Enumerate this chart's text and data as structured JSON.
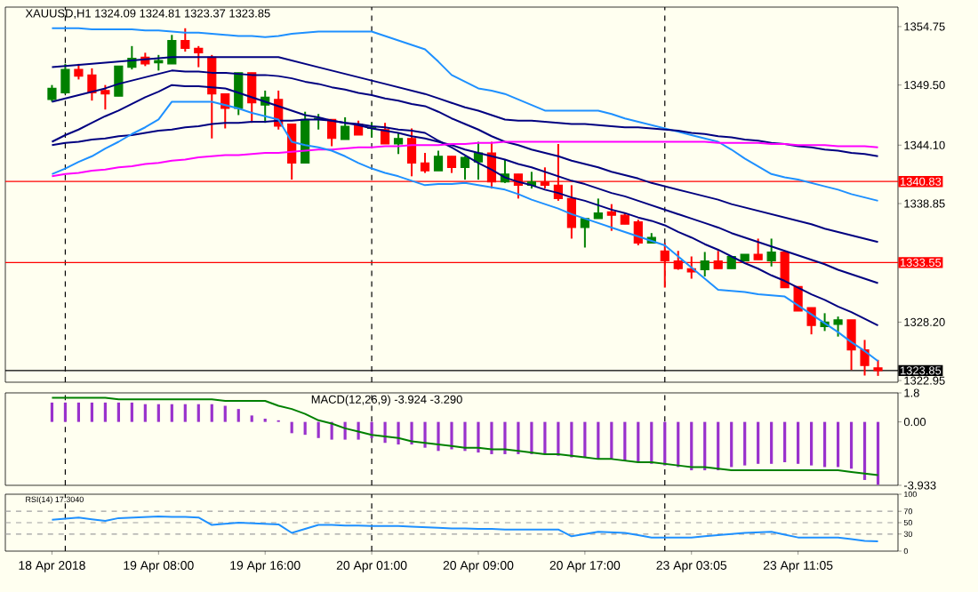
{
  "chart_data": [
    {
      "type": "candlestick",
      "title": "XAUUSD,H1  1324.09 1324.81 1323.37 1323.85",
      "categories": [
        null,
        null,
        null,
        null,
        null,
        null,
        null,
        null,
        null,
        null,
        null,
        null,
        null,
        null,
        null,
        null,
        null,
        null,
        null,
        null,
        null,
        null,
        null,
        null,
        null,
        null,
        null,
        null,
        null,
        null,
        null,
        null,
        null,
        null,
        null,
        null,
        null,
        null,
        null,
        null,
        null,
        null,
        null,
        null,
        null,
        null,
        null,
        null,
        null,
        null,
        null,
        null,
        null,
        null,
        null,
        null,
        null,
        null,
        null,
        null,
        null,
        null,
        null
      ],
      "ohlc": [
        [
          1348.2,
          1349.5,
          1348.0,
          1349.2
        ],
        [
          1348.8,
          1351.4,
          1348.7,
          1350.9
        ],
        [
          1350.9,
          1351.4,
          1350.0,
          1350.3
        ],
        [
          1350.4,
          1351.0,
          1348.1,
          1348.8
        ],
        [
          1349.0,
          1349.5,
          1347.3,
          1348.7
        ],
        [
          1348.5,
          1351.2,
          1348.5,
          1351.2
        ],
        [
          1351.1,
          1353.0,
          1350.9,
          1351.9
        ],
        [
          1352.0,
          1352.4,
          1351.2,
          1351.4
        ],
        [
          1351.5,
          1352.2,
          1350.8,
          1351.7
        ],
        [
          1351.4,
          1354.0,
          1351.4,
          1353.5
        ],
        [
          1353.5,
          1354.6,
          1352.5,
          1352.8
        ],
        [
          1352.8,
          1353.0,
          1351.1,
          1352.4
        ],
        [
          1352.0,
          1352.2,
          1344.7,
          1348.7
        ],
        [
          1348.7,
          1348.7,
          1345.6,
          1347.4
        ],
        [
          1347.4,
          1350.6,
          1346.8,
          1350.6
        ],
        [
          1350.6,
          1350.6,
          1346.1,
          1347.9
        ],
        [
          1347.7,
          1349.0,
          1346.1,
          1348.4
        ],
        [
          1348.2,
          1349.0,
          1345.5,
          1345.8
        ],
        [
          1346.0,
          1346.0,
          1341.0,
          1342.5
        ],
        [
          1342.5,
          1347.1,
          1342.5,
          1346.4
        ],
        [
          1346.4,
          1346.9,
          1345.5,
          1346.5
        ],
        [
          1346.4,
          1346.4,
          1344.0,
          1344.7
        ],
        [
          1344.6,
          1346.6,
          1344.6,
          1345.8
        ],
        [
          1346.0,
          1346.3,
          1345.0,
          1345.0
        ],
        [
          1345.6,
          1346.1,
          1344.8,
          1345.7
        ],
        [
          1345.5,
          1346.1,
          1344.2,
          1344.2
        ],
        [
          1344.2,
          1345.2,
          1343.3,
          1344.7
        ],
        [
          1344.7,
          1345.6,
          1341.3,
          1342.5
        ],
        [
          1342.5,
          1343.4,
          1341.6,
          1341.8
        ],
        [
          1341.8,
          1343.6,
          1341.8,
          1343.1
        ],
        [
          1343.1,
          1343.1,
          1341.6,
          1342.1
        ],
        [
          1342.1,
          1343.1,
          1341.0,
          1343.0
        ],
        [
          1342.6,
          1344.4,
          1341.0,
          1343.4
        ],
        [
          1343.4,
          1344.4,
          1340.2,
          1340.8
        ],
        [
          1340.8,
          1342.8,
          1340.7,
          1341.5
        ],
        [
          1341.5,
          1341.5,
          1339.3,
          1340.5
        ],
        [
          1340.5,
          1341.7,
          1340.2,
          1340.8
        ],
        [
          1340.8,
          1342.1,
          1340.2,
          1340.5
        ],
        [
          1340.5,
          1344.2,
          1339.1,
          1339.3
        ],
        [
          1339.3,
          1340.5,
          1335.7,
          1336.7
        ],
        [
          1336.7,
          1337.5,
          1334.9,
          1337.5
        ],
        [
          1337.5,
          1339.3,
          1337.5,
          1338.0
        ],
        [
          1338.1,
          1338.8,
          1336.4,
          1337.8
        ],
        [
          1337.8,
          1338.0,
          1337.0,
          1337.0
        ],
        [
          1337.2,
          1337.4,
          1335.1,
          1335.3
        ],
        [
          1335.3,
          1336.2,
          1335.3,
          1335.8
        ],
        [
          1334.6,
          1335.3,
          1331.3,
          1333.7
        ],
        [
          1333.7,
          1334.6,
          1332.9,
          1333.0
        ],
        [
          1333.0,
          1334.1,
          1332.1,
          1332.7
        ],
        [
          1332.9,
          1334.5,
          1332.3,
          1333.7
        ],
        [
          1333.7,
          1334.6,
          1333.0,
          1333.0
        ],
        [
          1333.0,
          1334.1,
          1333.0,
          1334.1
        ],
        [
          1333.7,
          1334.3,
          1333.7,
          1334.3
        ],
        [
          1334.3,
          1335.7,
          1333.8,
          1333.8
        ],
        [
          1333.7,
          1335.7,
          1333.2,
          1334.5
        ],
        [
          1334.5,
          1334.5,
          1331.3,
          1331.3
        ],
        [
          1331.4,
          1331.4,
          1329.2,
          1329.2
        ],
        [
          1329.5,
          1329.5,
          1327.1,
          1327.9
        ],
        [
          1327.8,
          1329.0,
          1327.4,
          1328.2
        ],
        [
          1328.0,
          1328.7,
          1326.9,
          1328.4
        ],
        [
          1328.4,
          1328.4,
          1323.9,
          1325.7
        ],
        [
          1325.7,
          1326.6,
          1323.4,
          1324.3
        ],
        [
          1324.09,
          1324.81,
          1323.37,
          1323.85
        ]
      ],
      "series": [
        {
          "type": "line",
          "color": "#1e90ff",
          "values": [
            1354.6,
            1354.6,
            1354.6,
            1354.5,
            1354.5,
            1354.5,
            1354.5,
            1354.4,
            1354.4,
            1354.3,
            1354.2,
            1354.2,
            1354.1,
            1354.0,
            1353.9,
            1353.9,
            1353.8,
            1353.9,
            1354.1,
            1354.2,
            1354.3,
            1354.3,
            1354.3,
            1354.3,
            1354.3,
            1353.9,
            1353.5,
            1353.1,
            1352.7,
            1351.6,
            1350.4,
            1349.8,
            1349.2,
            1349.0,
            1348.7,
            1348.2,
            1347.7,
            1347.2,
            1347.2,
            1347.2,
            1347.2,
            1347.2,
            1346.9,
            1346.5,
            1346.2,
            1345.9,
            1345.6,
            1345.3,
            1345.0,
            1344.7,
            1344.4,
            1343.7,
            1342.9,
            1342.2,
            1341.5,
            1341.2,
            1341.0,
            1340.7,
            1340.4,
            1340.1,
            1339.7,
            1339.4,
            1339.1
          ]
        },
        {
          "type": "line",
          "color": "#000080",
          "values": [
            1351.1,
            1351.2,
            1351.3,
            1351.4,
            1351.5,
            1351.6,
            1351.7,
            1351.8,
            1351.9,
            1352.0,
            1352.0,
            1352.0,
            1352.0,
            1352.0,
            1352.0,
            1352.0,
            1352.0,
            1352.0,
            1351.7,
            1351.4,
            1351.1,
            1350.8,
            1350.5,
            1350.2,
            1349.9,
            1349.6,
            1349.3,
            1349.0,
            1348.7,
            1348.3,
            1347.9,
            1347.5,
            1347.2,
            1346.8,
            1346.4,
            1346.3,
            1346.3,
            1346.2,
            1346.1,
            1346.0,
            1346.0,
            1345.9,
            1345.8,
            1345.7,
            1345.7,
            1345.6,
            1345.5,
            1345.4,
            1345.2,
            1345.1,
            1344.9,
            1344.8,
            1344.6,
            1344.5,
            1344.3,
            1344.2,
            1344.0,
            1343.9,
            1343.7,
            1343.6,
            1343.4,
            1343.3,
            1343.1
          ]
        },
        {
          "type": "line",
          "color": "#000080",
          "values": [
            1348.0,
            1348.3,
            1348.6,
            1348.9,
            1349.2,
            1349.6,
            1349.9,
            1350.2,
            1350.5,
            1350.8,
            1350.7,
            1350.7,
            1350.6,
            1350.6,
            1350.5,
            1350.4,
            1350.4,
            1350.3,
            1350.1,
            1349.8,
            1349.6,
            1349.3,
            1349.1,
            1348.8,
            1348.6,
            1348.3,
            1348.1,
            1347.8,
            1347.6,
            1347.1,
            1346.5,
            1346.0,
            1345.5,
            1344.9,
            1344.4,
            1344.1,
            1343.7,
            1343.4,
            1343.1,
            1342.7,
            1342.4,
            1342.1,
            1341.7,
            1341.4,
            1341.1,
            1340.7,
            1340.4,
            1340.1,
            1339.8,
            1339.5,
            1339.2,
            1338.8,
            1338.5,
            1338.2,
            1337.9,
            1337.6,
            1337.3,
            1337.0,
            1336.6,
            1336.3,
            1336.0,
            1335.7,
            1335.4
          ]
        },
        {
          "type": "line",
          "color": "#000080",
          "values": [
            1344.4,
            1345.0,
            1345.5,
            1346.1,
            1346.7,
            1347.2,
            1347.8,
            1348.4,
            1348.9,
            1349.5,
            1349.4,
            1349.4,
            1349.3,
            1349.2,
            1348.8,
            1348.4,
            1348.0,
            1347.6,
            1347.2,
            1346.8,
            1346.6,
            1346.3,
            1346.1,
            1345.9,
            1345.6,
            1345.4,
            1345.2,
            1344.9,
            1344.7,
            1344.4,
            1344.1,
            1343.7,
            1343.4,
            1343.1,
            1342.8,
            1342.4,
            1342.1,
            1341.7,
            1341.3,
            1340.9,
            1340.6,
            1340.2,
            1339.8,
            1339.5,
            1339.1,
            1338.7,
            1338.3,
            1337.9,
            1337.5,
            1337.1,
            1336.7,
            1336.2,
            1335.8,
            1335.4,
            1335.0,
            1334.6,
            1334.2,
            1333.8,
            1333.4,
            1332.9,
            1332.5,
            1332.1,
            1331.7
          ]
        },
        {
          "type": "line",
          "color": "#000080",
          "values": [
            1344.1,
            1344.3,
            1344.4,
            1344.6,
            1344.7,
            1344.9,
            1345.0,
            1345.2,
            1345.4,
            1345.5,
            1345.7,
            1345.8,
            1346.0,
            1346.1,
            1346.1,
            1346.2,
            1346.2,
            1346.3,
            1346.3,
            1346.4,
            1346.4,
            1346.3,
            1346.1,
            1346.0,
            1345.8,
            1345.7,
            1345.5,
            1345.4,
            1345.2,
            1344.5,
            1343.9,
            1343.2,
            1342.5,
            1341.9,
            1341.2,
            1340.8,
            1340.5,
            1340.1,
            1339.8,
            1339.4,
            1339.1,
            1338.7,
            1338.3,
            1338.0,
            1337.6,
            1337.3,
            1336.9,
            1336.3,
            1335.8,
            1335.2,
            1334.7,
            1334.1,
            1333.5,
            1333.0,
            1332.4,
            1331.9,
            1331.3,
            1330.7,
            1330.2,
            1329.6,
            1329.1,
            1328.5,
            1327.9
          ]
        },
        {
          "type": "line",
          "color": "#ff00ff",
          "values": [
            1341.3,
            1341.5,
            1341.6,
            1341.8,
            1341.9,
            1342.1,
            1342.2,
            1342.4,
            1342.5,
            1342.7,
            1342.8,
            1343.0,
            1343.1,
            1343.2,
            1343.2,
            1343.3,
            1343.4,
            1343.4,
            1343.5,
            1343.6,
            1343.7,
            1343.7,
            1343.8,
            1343.9,
            1343.9,
            1344.0,
            1344.0,
            1344.1,
            1344.1,
            1344.1,
            1344.2,
            1344.2,
            1344.3,
            1344.3,
            1344.4,
            1344.4,
            1344.4,
            1344.4,
            1344.4,
            1344.4,
            1344.4,
            1344.4,
            1344.4,
            1344.4,
            1344.4,
            1344.4,
            1344.4,
            1344.4,
            1344.4,
            1344.4,
            1344.3,
            1344.3,
            1344.3,
            1344.3,
            1344.2,
            1344.2,
            1344.1,
            1344.1,
            1344.1,
            1344.0,
            1344.0,
            1344.0,
            1343.9
          ]
        },
        {
          "type": "line",
          "color": "#1e90ff",
          "values": [
            1341.5,
            1342.0,
            1342.6,
            1343.1,
            1343.8,
            1344.4,
            1345.1,
            1345.7,
            1346.4,
            1348.0,
            1348.0,
            1348.0,
            1348.0,
            1347.7,
            1347.4,
            1347.0,
            1346.7,
            1346.4,
            1344.4,
            1344.1,
            1343.9,
            1343.6,
            1343.1,
            1342.5,
            1342.0,
            1341.6,
            1341.3,
            1340.9,
            1340.5,
            1340.6,
            1340.6,
            1340.7,
            1340.5,
            1340.3,
            1340.1,
            1339.7,
            1339.2,
            1338.8,
            1338.4,
            1337.9,
            1337.5,
            1337.1,
            1336.7,
            1336.3,
            1335.9,
            1335.5,
            1335.1,
            1334.1,
            1333.1,
            1332.1,
            1331.1,
            1331.0,
            1330.9,
            1330.7,
            1330.6,
            1330.5,
            1329.7,
            1328.9,
            1328.1,
            1327.3,
            1326.4,
            1325.6,
            1324.7
          ]
        }
      ],
      "ylim": [
        1322.8,
        1356.5
      ],
      "yticks": [
        1354.75,
        {
          "value": 1349.5,
          "label": "1349.50"
        },
        {
          "value": 1344.1,
          "label": "1344.10"
        },
        1338.85,
        {
          "value": 1328.2,
          "label": "1328.20"
        },
        1322.95
      ],
      "ref_lines": [
        {
          "axis": "y",
          "value": 1340.83,
          "label": "1340.83",
          "color": "#ff0000"
        },
        {
          "axis": "y",
          "value": 1333.55,
          "label": "1333.55",
          "color": "#ff0000"
        },
        {
          "axis": "y",
          "value": 1323.85,
          "label": "1323.85",
          "color": "#000000"
        }
      ],
      "grid": "x",
      "tick_labels": "y"
    },
    {
      "type": "bar",
      "title": "MACD(12,26,9) -3.924 -3.290",
      "categories": [
        null,
        null,
        null,
        null,
        null,
        null,
        null,
        null,
        null,
        null,
        null,
        null,
        null,
        null,
        null,
        null,
        null,
        null,
        null,
        null,
        null,
        null,
        null,
        null,
        null,
        null,
        null,
        null,
        null,
        null,
        null,
        null,
        null,
        null,
        null,
        null,
        null,
        null,
        null,
        null,
        null,
        null,
        null,
        null,
        null,
        null,
        null,
        null,
        null,
        null,
        null,
        null,
        null,
        null,
        null,
        null,
        null,
        null,
        null,
        null,
        null,
        null,
        null
      ],
      "series": [
        {
          "type": "bar",
          "color": "#9932cc",
          "values": [
            1.2,
            1.2,
            1.2,
            1.2,
            1.2,
            1.2,
            1.2,
            1.1,
            1.1,
            1.1,
            1.1,
            1.1,
            1.1,
            1.0,
            0.8,
            0.4,
            0.2,
            0.1,
            -0.7,
            -0.8,
            -1.0,
            -1.1,
            -1.1,
            -1.1,
            -1.0,
            -1.3,
            -1.4,
            -1.4,
            -1.6,
            -1.8,
            -1.7,
            -1.8,
            -1.9,
            -2.0,
            -2.0,
            -2.0,
            -2.0,
            -2.0,
            -2.1,
            -2.2,
            -2.2,
            -2.3,
            -2.3,
            -2.4,
            -2.5,
            -2.6,
            -2.7,
            -2.8,
            -3.0,
            -3.0,
            -3.0,
            -2.8,
            -2.7,
            -2.6,
            -2.6,
            -2.5,
            -2.6,
            -2.7,
            -2.8,
            -2.8,
            -2.9,
            -3.6,
            -3.9
          ]
        },
        {
          "type": "line",
          "color": "#008000",
          "values": [
            1.5,
            1.5,
            1.5,
            1.5,
            1.5,
            1.4,
            1.4,
            1.4,
            1.4,
            1.4,
            1.4,
            1.4,
            1.4,
            1.3,
            1.3,
            1.3,
            1.3,
            1.0,
            0.8,
            0.5,
            0.1,
            -0.1,
            -0.4,
            -0.6,
            -0.8,
            -0.9,
            -1.0,
            -1.2,
            -1.3,
            -1.4,
            -1.5,
            -1.6,
            -1.6,
            -1.7,
            -1.7,
            -1.8,
            -1.9,
            -2.0,
            -2.0,
            -2.1,
            -2.2,
            -2.3,
            -2.3,
            -2.4,
            -2.5,
            -2.5,
            -2.6,
            -2.7,
            -2.8,
            -2.8,
            -2.9,
            -3.0,
            -3.0,
            -3.0,
            -3.0,
            -3.0,
            -3.0,
            -3.0,
            -3.0,
            -3.0,
            -3.1,
            -3.2,
            -3.3
          ]
        }
      ],
      "ylim": [
        -3.933,
        1.8
      ],
      "yticks": [
        1.8,
        {
          "value": 0,
          "label": "0.00"
        },
        -3.933
      ],
      "grid": "x",
      "tick_labels": "y"
    },
    {
      "type": "line",
      "title": "RSI(14) 17.3040",
      "categories": [
        "18 Apr 2018",
        null,
        null,
        null,
        null,
        null,
        null,
        null,
        "19 Apr 08:00",
        null,
        null,
        null,
        null,
        null,
        null,
        null,
        "19 Apr 16:00",
        null,
        null,
        null,
        null,
        null,
        null,
        null,
        "20 Apr 01:00",
        null,
        null,
        null,
        null,
        null,
        null,
        null,
        "20 Apr 09:00",
        null,
        null,
        null,
        null,
        null,
        null,
        null,
        "20 Apr 17:00",
        null,
        null,
        null,
        null,
        null,
        null,
        null,
        "23 Apr 03:05",
        null,
        null,
        null,
        null,
        null,
        null,
        null,
        "23 Apr 11:05",
        null,
        null,
        null,
        null,
        null,
        null
      ],
      "series": [
        {
          "color": "#1e90ff",
          "values": [
            55,
            57,
            59,
            56,
            53,
            58,
            59,
            60,
            61,
            60,
            60,
            59,
            46,
            48,
            50,
            49,
            48,
            47,
            32,
            39,
            46,
            46,
            45,
            45,
            44,
            44,
            44,
            43,
            42,
            41,
            40,
            40,
            39,
            39,
            38,
            38,
            38,
            38,
            38,
            26,
            30,
            34,
            33,
            32,
            28,
            24,
            24,
            24,
            24,
            26,
            28,
            30,
            32,
            33,
            34,
            29,
            24,
            24,
            24,
            24,
            21,
            18,
            17
          ]
        }
      ],
      "ylim": [
        0,
        100
      ],
      "yticks": [
        100,
        70,
        50,
        30,
        0
      ],
      "ref_lines": [
        {
          "axis": "y",
          "value": 70,
          "color": "#a0a0a0",
          "line_style": "dashed"
        },
        {
          "axis": "y",
          "value": 50,
          "color": "#a0a0a0",
          "line_style": "dashed"
        },
        {
          "axis": "y",
          "value": 30,
          "color": "#a0a0a0",
          "line_style": "dashed"
        }
      ],
      "grid": "x"
    }
  ]
}
